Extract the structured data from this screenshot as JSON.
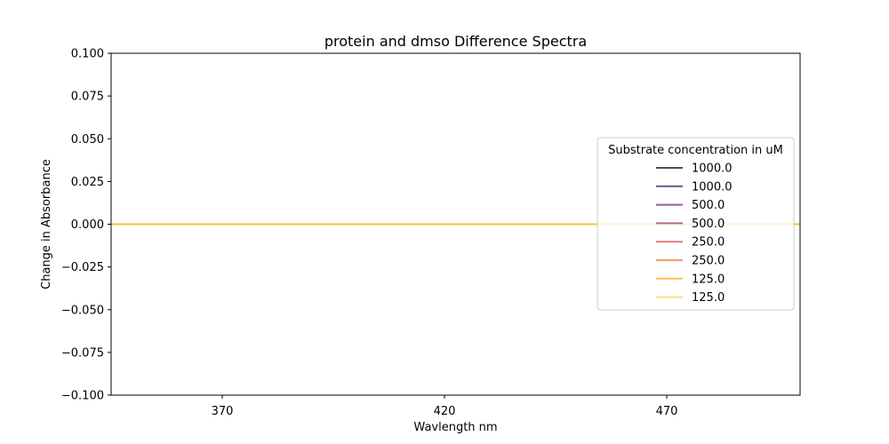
{
  "chart_data": {
    "type": "line",
    "title": "protein and dmso Difference Spectra",
    "xlabel": "Wavlength nm",
    "ylabel": "Change in Absorbance",
    "xlim": [
      345,
      500
    ],
    "ylim": [
      -0.1,
      0.1
    ],
    "xticks": [
      370,
      420,
      470
    ],
    "xtick_labels": [
      "370",
      "420",
      "470"
    ],
    "yticks": [
      -0.1,
      -0.075,
      -0.05,
      -0.025,
      0.0,
      0.025,
      0.05,
      0.075,
      0.1
    ],
    "ytick_labels": [
      "−0.100",
      "−0.075",
      "−0.050",
      "−0.025",
      "0.000",
      "0.025",
      "0.050",
      "0.075",
      "0.100"
    ],
    "grid": false,
    "legend": {
      "title": "Substrate concentration in uM",
      "placement": "center-right"
    },
    "series": [
      {
        "name": "1000.0",
        "color": "#000004",
        "x": [
          345,
          500
        ],
        "values": [
          0.0,
          0.0
        ]
      },
      {
        "name": "1000.0",
        "color": "#320a5e",
        "x": [
          345,
          500
        ],
        "values": [
          0.0,
          0.0
        ]
      },
      {
        "name": "500.0",
        "color": "#6a176e",
        "x": [
          345,
          500
        ],
        "values": [
          0.0,
          0.0
        ]
      },
      {
        "name": "500.0",
        "color": "#9c2964",
        "x": [
          345,
          500
        ],
        "values": [
          0.0,
          0.0
        ]
      },
      {
        "name": "250.0",
        "color": "#d04545",
        "x": [
          345,
          500
        ],
        "values": [
          0.0,
          0.0
        ]
      },
      {
        "name": "250.0",
        "color": "#f06f20",
        "x": [
          345,
          500
        ],
        "values": [
          0.0,
          0.0
        ]
      },
      {
        "name": "125.0",
        "color": "#fca50a",
        "x": [
          345,
          500
        ],
        "values": [
          0.0,
          0.0
        ]
      },
      {
        "name": "125.0",
        "color": "#f6d746",
        "x": [
          345,
          500
        ],
        "values": [
          0.0,
          0.0
        ]
      }
    ]
  }
}
